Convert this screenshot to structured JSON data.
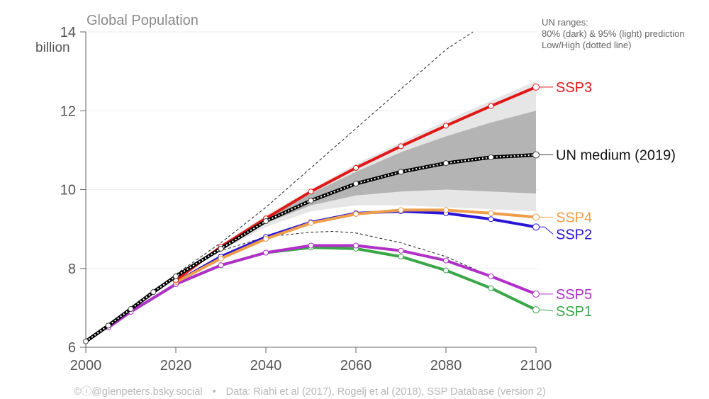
{
  "chart_data": {
    "type": "line",
    "title": "Global Population",
    "ylabel": "billion",
    "xlim": [
      2000,
      2100
    ],
    "ylim": [
      6,
      14
    ],
    "xticks": [
      2000,
      2020,
      2040,
      2060,
      2080,
      2100
    ],
    "yticks": [
      6,
      8,
      10,
      12,
      14
    ],
    "grid": "horizontal",
    "note": [
      "UN ranges:",
      "80% (dark) & 95% (light) prediction",
      "Low/High (dotted line)"
    ],
    "credit": {
      "handle": "©ⓘ@glenpeters.bsky.social",
      "separator": "•",
      "source": "Data: Riahi et al (2017), Rogelj et al (2018), SSP Database (version 2)"
    },
    "bands": [
      {
        "name": "UN 95% prediction interval",
        "color": "#e6e6e6",
        "x": [
          2030,
          2040,
          2050,
          2060,
          2070,
          2080,
          2090,
          2100
        ],
        "lower": [
          8.45,
          9.05,
          9.45,
          9.6,
          9.6,
          9.55,
          9.5,
          9.45
        ],
        "upper": [
          8.6,
          9.35,
          10.0,
          10.65,
          11.2,
          11.75,
          12.25,
          12.75
        ]
      },
      {
        "name": "UN 80% prediction interval",
        "color": "#b4b4b4",
        "x": [
          2030,
          2040,
          2050,
          2060,
          2070,
          2080,
          2090,
          2100
        ],
        "lower": [
          8.5,
          9.15,
          9.6,
          9.85,
          9.95,
          10.0,
          9.95,
          9.9
        ],
        "upper": [
          8.55,
          9.3,
          9.9,
          10.45,
          10.95,
          11.35,
          11.7,
          12.0
        ]
      }
    ],
    "guides": [
      {
        "name": "UN High",
        "x": [
          2020,
          2030,
          2040,
          2050,
          2060,
          2070,
          2080,
          2086
        ],
        "y": [
          7.85,
          8.65,
          9.55,
          10.55,
          11.55,
          12.55,
          13.55,
          14.0
        ]
      },
      {
        "name": "UN Low",
        "x": [
          2020,
          2030,
          2040,
          2050,
          2055,
          2060,
          2070,
          2080,
          2090
        ],
        "y": [
          7.8,
          8.45,
          8.8,
          8.92,
          8.94,
          8.9,
          8.65,
          8.3,
          7.8
        ]
      }
    ],
    "series": [
      {
        "name": "SSP1",
        "label": "SSP1",
        "color": "#3aa648",
        "x": [
          2010,
          2020,
          2030,
          2040,
          2050,
          2060,
          2070,
          2080,
          2090,
          2100
        ],
        "y": [
          6.9,
          7.6,
          8.08,
          8.4,
          8.53,
          8.5,
          8.3,
          7.95,
          7.5,
          6.95
        ]
      },
      {
        "name": "SSP5",
        "label": "SSP5",
        "color": "#b030c8",
        "x": [
          2005,
          2010,
          2020,
          2030,
          2040,
          2050,
          2060,
          2070,
          2080,
          2090,
          2100
        ],
        "y": [
          6.5,
          6.9,
          7.6,
          8.08,
          8.4,
          8.58,
          8.58,
          8.45,
          8.2,
          7.8,
          7.35
        ]
      },
      {
        "name": "SSP2",
        "label": "SSP2",
        "color": "#2a14d8",
        "x": [
          2020,
          2030,
          2040,
          2050,
          2060,
          2070,
          2080,
          2090,
          2100
        ],
        "y": [
          7.65,
          8.3,
          8.8,
          9.17,
          9.4,
          9.45,
          9.4,
          9.25,
          9.05
        ]
      },
      {
        "name": "SSP4",
        "label": "SSP4",
        "color": "#ee9e4a",
        "x": [
          2020,
          2030,
          2040,
          2050,
          2060,
          2070,
          2080,
          2090,
          2100
        ],
        "y": [
          7.65,
          8.25,
          8.75,
          9.15,
          9.38,
          9.48,
          9.48,
          9.4,
          9.3
        ]
      },
      {
        "name": "SSP3",
        "label": "SSP3",
        "color": "#e01818",
        "x": [
          2020,
          2030,
          2040,
          2050,
          2060,
          2070,
          2080,
          2090,
          2100
        ],
        "y": [
          7.7,
          8.55,
          9.27,
          9.95,
          10.55,
          11.1,
          11.62,
          12.12,
          12.6
        ]
      },
      {
        "name": "UN medium (2019)",
        "label": "UN medium (2019)",
        "color": "#000000",
        "dotted": true,
        "x": [
          2000,
          2005,
          2010,
          2015,
          2020,
          2030,
          2040,
          2050,
          2060,
          2070,
          2080,
          2090,
          2100
        ],
        "y": [
          6.15,
          6.55,
          6.97,
          7.4,
          7.8,
          8.5,
          9.2,
          9.72,
          10.15,
          10.45,
          10.67,
          10.82,
          10.88
        ]
      }
    ]
  }
}
